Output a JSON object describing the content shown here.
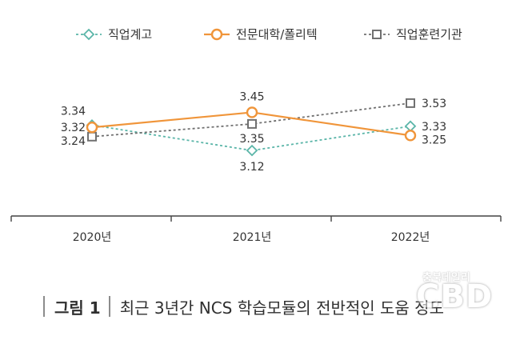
{
  "chart_data": {
    "type": "line",
    "categories": [
      "2020년",
      "2021년",
      "2022년"
    ],
    "series": [
      {
        "name": "직업계고",
        "values": [
          3.34,
          3.12,
          3.33
        ],
        "labels": [
          "3.34",
          "3.12",
          "3.33"
        ],
        "color": "#5ab5a8",
        "dash": "dashed",
        "marker": "diamond"
      },
      {
        "name": "전문대학/폴리텍",
        "values": [
          3.32,
          3.45,
          3.25
        ],
        "labels": [
          "3.32",
          "3.45",
          "3.25"
        ],
        "color": "#f0953a",
        "dash": "solid",
        "marker": "circle"
      },
      {
        "name": "직업훈련기관",
        "values": [
          3.24,
          3.35,
          3.53
        ],
        "labels": [
          "3.24",
          "3.35",
          "3.53"
        ],
        "color": "#707070",
        "dash": "dashed",
        "marker": "square"
      }
    ],
    "legend_position": "top",
    "grid": false
  },
  "caption": {
    "figure_label": "그림 1",
    "title": "최근 3년간 NCS 학습모듈의 전반적인 도움 정도"
  },
  "watermark": {
    "top": "충북데일리",
    "main": "CBD"
  }
}
